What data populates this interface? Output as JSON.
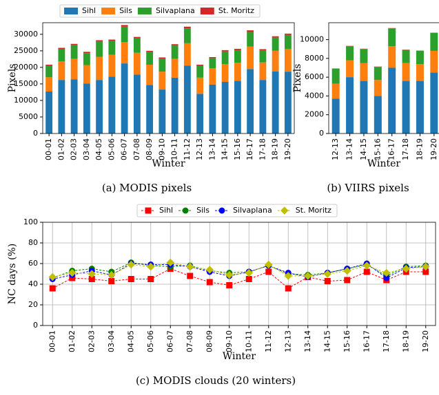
{
  "chart_data": [
    {
      "type": "bar",
      "stacked": true,
      "caption": "(a) MODIS pixels",
      "xlabel": "Winter",
      "ylabel": "Pixels",
      "legend": true,
      "categories": [
        "00-01",
        "01-02",
        "02-03",
        "03-04",
        "04-05",
        "05-06",
        "06-07",
        "07-08",
        "08-09",
        "09-10",
        "10-11",
        "11-12",
        "12-13",
        "13-14",
        "14-15",
        "15-16",
        "16-17",
        "17-18",
        "18-19",
        "19-20"
      ],
      "series": [
        {
          "name": "Sihl",
          "color": "#1f77b4",
          "values": [
            12700,
            16200,
            16400,
            15100,
            16200,
            17200,
            21200,
            17800,
            14700,
            13300,
            16900,
            20500,
            12000,
            14800,
            15600,
            15900,
            19500,
            16200,
            18800,
            18700
          ]
        },
        {
          "name": "Sils",
          "color": "#ff7f0e",
          "values": [
            4300,
            5600,
            6200,
            5600,
            7000,
            6600,
            6400,
            6600,
            6100,
            5400,
            5700,
            6800,
            4900,
            4900,
            5400,
            5500,
            6800,
            5300,
            6200,
            6900
          ]
        },
        {
          "name": "Silvaplana",
          "color": "#2ca02c",
          "values": [
            3500,
            3700,
            4100,
            3600,
            4600,
            4200,
            4700,
            4400,
            3800,
            3900,
            4000,
            4500,
            3600,
            3100,
            3800,
            3800,
            4400,
            3600,
            4000,
            4200
          ]
        },
        {
          "name": "St. Moritz",
          "color": "#d62728",
          "values": [
            300,
            400,
            400,
            400,
            400,
            400,
            500,
            400,
            400,
            400,
            400,
            500,
            300,
            300,
            400,
            400,
            500,
            400,
            400,
            400
          ]
        }
      ],
      "ylim": [
        0,
        33500
      ],
      "yticks": [
        0,
        5000,
        10000,
        15000,
        20000,
        25000,
        30000
      ],
      "grid": false
    },
    {
      "type": "bar",
      "stacked": true,
      "caption": "(b) VIIRS pixels",
      "xlabel": "Winter",
      "ylabel": "Pixels",
      "legend": false,
      "categories": [
        "12-13",
        "13-14",
        "14-15",
        "15-16",
        "16-17",
        "17-18",
        "18-19",
        "19-20"
      ],
      "series": [
        {
          "name": "Sihl",
          "color": "#1f77b4",
          "values": [
            3700,
            6000,
            5600,
            4000,
            7000,
            5600,
            5600,
            6500
          ]
        },
        {
          "name": "Sils",
          "color": "#ff7f0e",
          "values": [
            1600,
            1800,
            1900,
            1700,
            2300,
            1900,
            1800,
            2300
          ]
        },
        {
          "name": "Silvaplana",
          "color": "#2ca02c",
          "values": [
            1600,
            1500,
            1500,
            1400,
            1900,
            1400,
            1400,
            1900
          ]
        },
        {
          "name": "St. Moritz",
          "color": "#d62728",
          "values": [
            30,
            30,
            30,
            30,
            30,
            30,
            30,
            30
          ]
        }
      ],
      "ylim": [
        0,
        11800
      ],
      "yticks": [
        0,
        2000,
        4000,
        6000,
        8000,
        10000
      ],
      "grid": false
    },
    {
      "type": "line",
      "caption": "(c) MODIS clouds (20 winters)",
      "xlabel": "Winter",
      "ylabel": "NC days (%)",
      "legend": true,
      "categories": [
        "00-01",
        "01-02",
        "02-03",
        "03-04",
        "04-05",
        "05-06",
        "06-07",
        "07-08",
        "08-09",
        "09-10",
        "10-11",
        "11-12",
        "12-13",
        "13-14",
        "14-15",
        "15-16",
        "16-17",
        "17-18",
        "18-19",
        "19-20"
      ],
      "series": [
        {
          "name": "Sihl",
          "color": "#ff0000",
          "marker": "square",
          "values": [
            36,
            46,
            45,
            43,
            45,
            45,
            55,
            48,
            42,
            39,
            45,
            52,
            36,
            47,
            43,
            44,
            52,
            44,
            52,
            52
          ]
        },
        {
          "name": "Sils",
          "color": "#008000",
          "marker": "circle",
          "values": [
            46,
            53,
            55,
            52,
            61,
            58,
            57,
            58,
            53,
            51,
            52,
            58,
            50,
            49,
            51,
            55,
            59,
            48,
            57,
            58
          ]
        },
        {
          "name": "Silvaplana",
          "color": "#0000ff",
          "marker": "circle",
          "values": [
            45,
            49,
            53,
            49,
            60,
            59,
            59,
            57,
            52,
            48,
            52,
            58,
            51,
            47,
            51,
            55,
            60,
            46,
            56,
            57
          ]
        },
        {
          "name": "St. Moritz",
          "color": "#bfbf00",
          "marker": "diamond",
          "values": [
            47,
            51,
            50,
            49,
            59,
            57,
            61,
            57,
            54,
            49,
            51,
            59,
            48,
            48,
            50,
            53,
            58,
            51,
            55,
            57
          ]
        }
      ],
      "ylim": [
        0,
        100
      ],
      "yticks": [
        0,
        20,
        40,
        60,
        80,
        100
      ],
      "grid": true
    }
  ]
}
